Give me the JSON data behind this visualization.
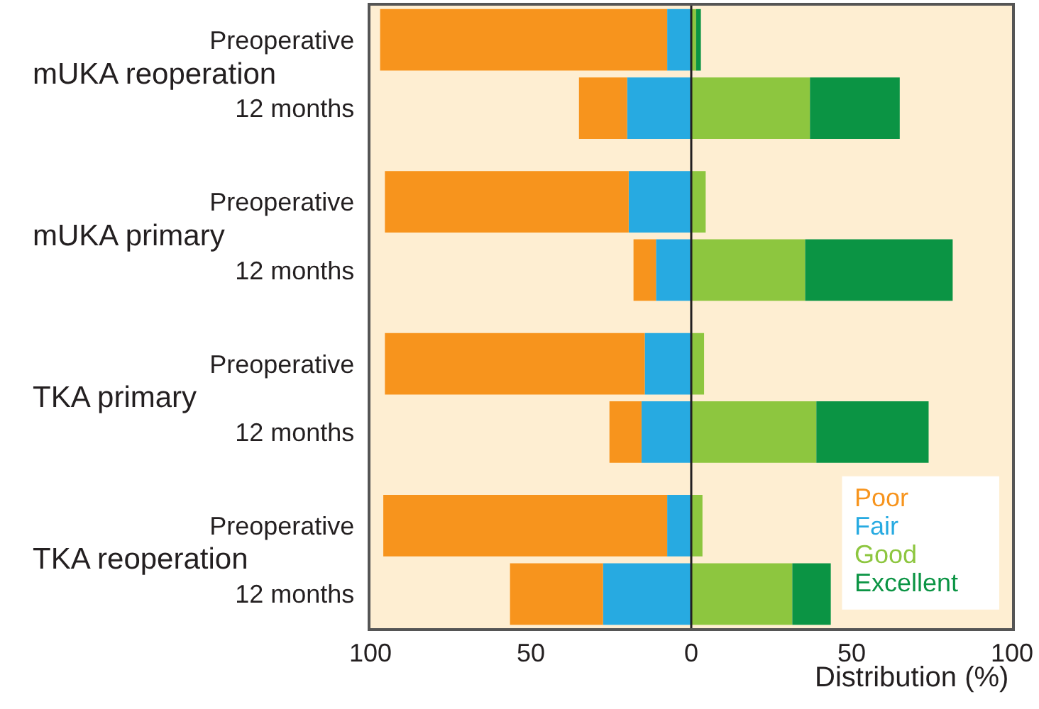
{
  "chart_data": {
    "type": "bar",
    "orientation": "horizontal",
    "stacked": true,
    "categories": [
      "Preoperative",
      "12 months",
      "Preoperative",
      "12 months",
      "Preoperative",
      "12 months",
      "Preoperative",
      "12 months"
    ],
    "series": [
      {
        "name": "Poor",
        "color": "#f7941d",
        "values": [
          -89.5,
          -15,
          -76,
          -7,
          -81,
          -10,
          -88.5,
          -29
        ]
      },
      {
        "name": "Fair",
        "color": "#27aae1",
        "values": [
          -7.5,
          -20,
          -19.5,
          -11,
          -14.5,
          -15.5,
          -7.5,
          -27.5
        ]
      },
      {
        "name": "Good",
        "color": "#8dc63f",
        "values": [
          1.5,
          37,
          4.5,
          35.5,
          4,
          39,
          3.5,
          31.5
        ]
      },
      {
        "name": "Excellent",
        "color": "#0b9444",
        "values": [
          1.5,
          28,
          null,
          46,
          null,
          35,
          null,
          12
        ]
      }
    ],
    "annotations": [
      "mUKA reoperation",
      "mUKA primary",
      "TKA primary",
      "TKA reoperation"
    ],
    "xlabel": "Distribution (%)",
    "xlim": [
      -100,
      100
    ],
    "xticks": [
      {
        "value": -100,
        "label": "100"
      },
      {
        "value": -50,
        "label": "50"
      },
      0,
      50,
      100
    ],
    "grid": false,
    "ref_lines": [
      {
        "axis": "x",
        "value": 0,
        "color": "#231f20"
      }
    ],
    "legend": "bottom right"
  }
}
